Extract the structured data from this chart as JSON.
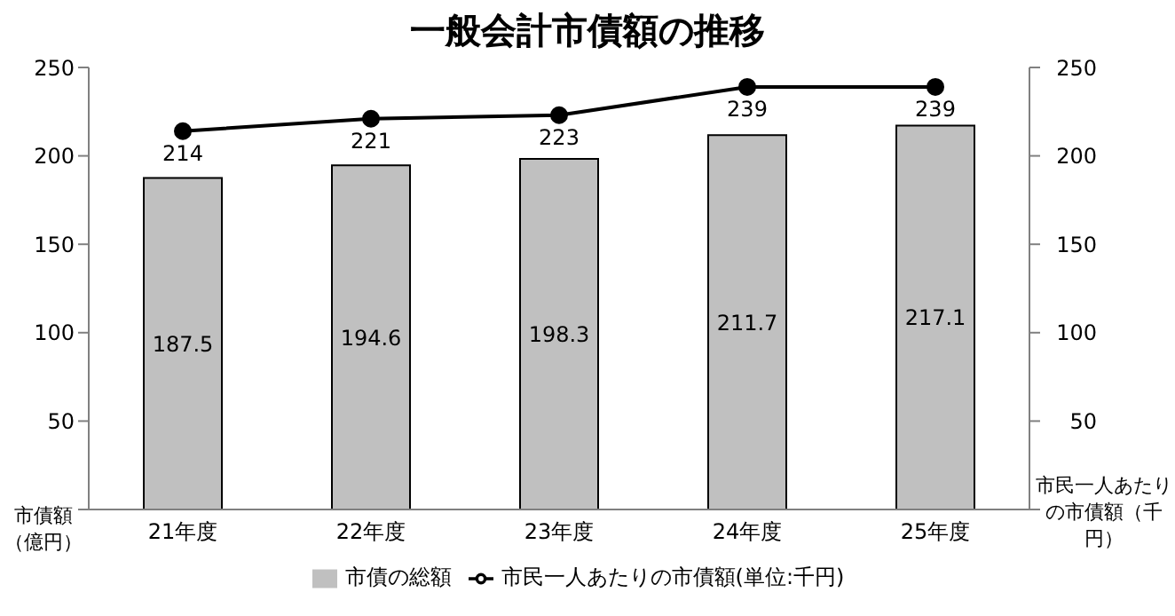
{
  "chart_data": {
    "type": "bar",
    "title": "一般会計市債額の推移",
    "categories": [
      "21年度",
      "22年度",
      "23年度",
      "24年度",
      "25年度"
    ],
    "series": [
      {
        "name": "市債の総額",
        "color": "#c0c0c0",
        "values": [
          187.5,
          194.6,
          198.3,
          211.7,
          217.1
        ]
      },
      {
        "name": "市民一人あたりの市債額(単位:千円)",
        "type": "line",
        "axis": "y2",
        "color": "#000000",
        "values": [
          214,
          221,
          223,
          239,
          239
        ]
      }
    ],
    "ylabel": "市債額（億円）",
    "y2label": "市民一人あたりの市債額（千円）",
    "ylim": [
      0,
      250
    ],
    "yticks": [
      {
        "value": 0,
        "label": null
      },
      50,
      100,
      150,
      200,
      250
    ],
    "y2lim": [
      0,
      250
    ],
    "y2ticks": [
      {
        "value": 0,
        "label": null
      },
      50,
      100,
      150,
      200,
      250
    ],
    "data_labels": true,
    "grid": false,
    "legend": "bottom",
    "marker": "circle",
    "line_style": "solid"
  }
}
